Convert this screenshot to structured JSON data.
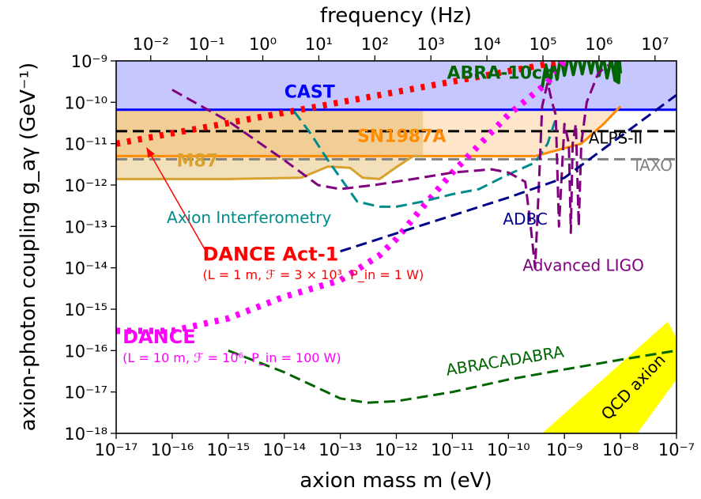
{
  "chart_data": {
    "type": "line",
    "xlabel": "axion mass m (eV)",
    "ylabel": "axion-photon coupling g_aγ (GeV⁻¹)",
    "top_axis_label": "frequency (Hz)",
    "xscale": "log",
    "yscale": "log",
    "xlim": [
      1e-17,
      1e-07
    ],
    "ylim": [
      1e-18,
      1e-09
    ],
    "x_ticks": [
      "10⁻¹⁷",
      "10⁻¹⁶",
      "10⁻¹⁵",
      "10⁻¹⁴",
      "10⁻¹³",
      "10⁻¹²",
      "10⁻¹¹",
      "10⁻¹⁰",
      "10⁻⁹",
      "10⁻⁸",
      "10⁻⁷"
    ],
    "y_ticks": [
      "10⁻¹⁸",
      "10⁻¹⁷",
      "10⁻¹⁶",
      "10⁻¹⁵",
      "10⁻¹⁴",
      "10⁻¹³",
      "10⁻¹²",
      "10⁻¹¹",
      "10⁻¹⁰",
      "10⁻⁹"
    ],
    "top_ticks": [
      "10⁻²",
      "10⁻¹",
      "10⁰",
      "10¹",
      "10²",
      "10³",
      "10⁴",
      "10⁵",
      "10⁶",
      "10⁷"
    ],
    "top_tick_values_hz": [
      0.01,
      0.1,
      1,
      10,
      100,
      1000,
      10000,
      100000,
      1000000,
      10000000
    ],
    "hz_per_ev": 241800000000000.0,
    "grid": false,
    "series": [
      {
        "name": "CAST",
        "color": "#0000ff",
        "style": "solid",
        "fill": "#0000ff",
        "fill_opacity": 0.22,
        "fill_to": 1e-09,
        "points": [
          [
            1e-17,
            6.6e-11
          ],
          [
            1e-07,
            6.6e-11
          ]
        ]
      },
      {
        "name": "ALPS-II",
        "color": "#000000",
        "style": "dashed",
        "points": [
          [
            1e-17,
            2e-11
          ],
          [
            1e-07,
            2e-11
          ]
        ]
      },
      {
        "name": "IAXO",
        "color": "#808080",
        "style": "dashed",
        "points": [
          [
            1e-17,
            4.2e-12
          ],
          [
            1e-07,
            4.2e-12
          ]
        ]
      },
      {
        "name": "SN1987A",
        "color": "#ff8c00",
        "style": "solid",
        "fill": "#ffc68a",
        "fill_opacity": 0.45,
        "fill_to": 6.6e-11,
        "points": [
          [
            1e-17,
            5e-12
          ],
          [
            3e-10,
            5e-12
          ],
          [
            2e-09,
            1e-11
          ],
          [
            5e-09,
            3e-11
          ],
          [
            1e-08,
            8e-11
          ]
        ]
      },
      {
        "name": "M87",
        "color": "#d8a130",
        "style": "solid",
        "fill": "#d8a130",
        "fill_opacity": 0.33,
        "fill_to": 6.6e-11,
        "fill_xmax": 1e-11,
        "points": [
          [
            1e-17,
            1.4e-12
          ],
          [
            1e-15,
            1.4e-12
          ],
          [
            2e-14,
            1.5e-12
          ],
          [
            6e-14,
            2.8e-12
          ],
          [
            1.5e-13,
            2.6e-12
          ],
          [
            2.5e-13,
            1.5e-12
          ],
          [
            5e-13,
            1.4e-12
          ],
          [
            1e-12,
            2.7e-12
          ],
          [
            2e-12,
            5e-12
          ],
          [
            3e-12,
            5e-12
          ]
        ]
      },
      {
        "name": "ABRA-10cm",
        "color": "#006400",
        "style": "wiggle",
        "points": [
          [
            4e-10,
            4e-10
          ],
          [
            1e-09,
            8e-10
          ],
          [
            3e-09,
            9e-10
          ],
          [
            8e-09,
            6e-10
          ],
          [
            1e-08,
            5e-10
          ]
        ]
      },
      {
        "name": "DANCE Act-1",
        "color": "#ff0000",
        "style": "dotted-thick",
        "points": [
          [
            1e-17,
            1e-11
          ],
          [
            1e-09,
            1e-09
          ]
        ]
      },
      {
        "name": "DANCE",
        "color": "#ff00ff",
        "style": "dotted-thick",
        "points": [
          [
            1e-17,
            3e-16
          ],
          [
            1e-16,
            3e-16
          ],
          [
            1e-15,
            6e-16
          ],
          [
            1e-14,
            2e-15
          ],
          [
            1e-13,
            5e-15
          ],
          [
            5e-13,
            2e-14
          ],
          [
            1e-12,
            5e-14
          ],
          [
            3e-12,
            3e-13
          ],
          [
            1e-11,
            2e-12
          ],
          [
            1e-10,
            5e-11
          ],
          [
            5e-10,
            3e-10
          ],
          [
            1e-09,
            1e-09
          ]
        ]
      },
      {
        "name": "Axion Interferometry",
        "color": "#008b8b",
        "style": "dashed",
        "points": [
          [
            1.5e-14,
            6e-11
          ],
          [
            3e-14,
            1.7e-11
          ],
          [
            6e-14,
            4e-12
          ],
          [
            1e-13,
            1.5e-12
          ],
          [
            2e-13,
            4e-13
          ],
          [
            5e-13,
            3e-13
          ],
          [
            1e-12,
            3e-13
          ],
          [
            3e-12,
            4e-13
          ],
          [
            1e-11,
            6e-13
          ],
          [
            3e-11,
            8e-13
          ],
          [
            1e-10,
            1.8e-12
          ],
          [
            3e-10,
            3.5e-12
          ],
          [
            5e-10,
            1e-11
          ],
          [
            7e-10,
            4e-11
          ]
        ]
      },
      {
        "name": "Advanced LIGO",
        "color": "#800080",
        "style": "dashed",
        "points": [
          [
            1e-16,
            2e-10
          ],
          [
            1e-15,
            3.5e-11
          ],
          [
            1e-14,
            4e-12
          ],
          [
            4e-14,
            1e-12
          ],
          [
            1e-13,
            8e-13
          ],
          [
            4e-13,
            1e-12
          ],
          [
            2e-12,
            1.4e-12
          ],
          [
            1e-11,
            2e-12
          ],
          [
            5e-11,
            2.4e-12
          ],
          [
            1e-10,
            2e-12
          ],
          [
            2e-10,
            1.2e-12
          ],
          [
            2.5e-10,
            1e-13
          ],
          [
            3e-10,
            1e-14
          ],
          [
            3.5e-10,
            1e-12
          ],
          [
            4e-10,
            8e-11
          ],
          [
            5e-10,
            3e-10
          ],
          [
            6e-10,
            1e-10
          ],
          [
            7e-10,
            5e-11
          ],
          [
            8e-10,
            1e-13
          ],
          [
            1e-09,
            3e-11
          ],
          [
            1.2e-09,
            1e-11
          ],
          [
            1.3e-09,
            7e-14
          ],
          [
            1.4e-09,
            1e-11
          ],
          [
            1.6e-09,
            3e-11
          ],
          [
            1.8e-09,
            1e-13
          ],
          [
            2e-09,
            1e-11
          ],
          [
            2.5e-09,
            1e-10
          ],
          [
            4e-09,
            5e-10
          ],
          [
            6e-09,
            8e-10
          ]
        ]
      },
      {
        "name": "ADBC",
        "color": "#00008b",
        "style": "dashed",
        "points": [
          [
            1e-13,
            2.5e-14
          ],
          [
            1e-10,
            5e-13
          ],
          [
            1e-09,
            1.5e-12
          ],
          [
            1e-08,
            1.5e-11
          ],
          [
            1e-07,
            1.5e-10
          ]
        ]
      },
      {
        "name": "ABRACADABRA",
        "color": "#006400",
        "style": "dashed",
        "points": [
          [
            1e-15,
            1e-16
          ],
          [
            1e-14,
            3e-17
          ],
          [
            1e-13,
            7e-18
          ],
          [
            3e-13,
            5.5e-18
          ],
          [
            1e-12,
            6e-18
          ],
          [
            1e-11,
            1e-17
          ],
          [
            1e-10,
            2e-17
          ],
          [
            1e-09,
            3.5e-17
          ],
          [
            1e-08,
            6e-17
          ],
          [
            1e-07,
            1e-16
          ]
        ]
      },
      {
        "name": "QCD axion",
        "color": "#ffff00",
        "style": "band",
        "polygon": [
          [
            4e-10,
            1e-18
          ],
          [
            7e-08,
            5e-16
          ],
          [
            1e-07,
            2e-16
          ],
          [
            1e-07,
            2e-17
          ],
          [
            2e-08,
            1e-18
          ]
        ]
      }
    ],
    "annotations": [
      {
        "text": "CAST",
        "at": [
          1e-14,
          1.3e-10
        ],
        "color": "#0000ff",
        "bold": true,
        "size": 22
      },
      {
        "text": "ABRA-10cm",
        "at": [
          8e-12,
          3.7e-10
        ],
        "color": "#006400",
        "bold": true,
        "size": 22
      },
      {
        "text": "SN1987A",
        "at": [
          2e-13,
          1.1e-11
        ],
        "color": "#ff8c00",
        "bold": true,
        "size": 22
      },
      {
        "text": "M87",
        "at": [
          1.2e-16,
          2.8e-12
        ],
        "color": "#d8a130",
        "bold": true,
        "size": 22
      },
      {
        "text": "ALPS-II",
        "at": [
          2.5e-08,
          1e-11
        ],
        "color": "#000000",
        "bold": false,
        "size": 20,
        "anchor": "end"
      },
      {
        "text": "IAXO",
        "at": [
          8.5e-08,
          2.2e-12
        ],
        "color": "#808080",
        "bold": false,
        "size": 20,
        "anchor": "end"
      },
      {
        "text": "Axion Interferometry",
        "at": [
          8e-17,
          1.2e-13
        ],
        "color": "#008b8b",
        "bold": false,
        "size": 20
      },
      {
        "text": "ADBC",
        "at": [
          8e-11,
          1.1e-13
        ],
        "color": "#00008b",
        "bold": false,
        "size": 20
      },
      {
        "text": "Advanced LIGO",
        "at": [
          1.8e-10,
          8.5e-15
        ],
        "color": "#800080",
        "bold": false,
        "size": 20
      },
      {
        "text": "DANCE Act-1",
        "at": [
          3.5e-16,
          1.5e-14
        ],
        "color": "#ff0000",
        "bold": true,
        "size": 24
      },
      {
        "text": "(L = 1 m, ℱ = 3 × 10³, P_in = 1 W)",
        "at": [
          3.5e-16,
          5.3e-15
        ],
        "color": "#ff0000",
        "bold": false,
        "size": 16
      },
      {
        "text": "DANCE",
        "at": [
          1.3e-17,
          1.5e-16
        ],
        "color": "#ff00ff",
        "bold": true,
        "size": 24
      },
      {
        "text": "(L = 10 m, ℱ = 10⁶, P_in = 100 W)",
        "at": [
          1.3e-17,
          5.3e-17
        ],
        "color": "#ff00ff",
        "bold": false,
        "size": 16
      },
      {
        "text": "ABRACADABRA",
        "at": [
          8e-12,
          2.5e-17
        ],
        "color": "#006400",
        "bold": false,
        "size": 20,
        "rotate": -9
      },
      {
        "text": "QCD axion",
        "at": [
          6e-09,
          2e-18
        ],
        "color": "#000000",
        "bold": false,
        "size": 20,
        "rotate": -46
      }
    ],
    "arrow": {
      "from": [
        4e-16,
        2.5e-14
      ],
      "to": [
        3.5e-17,
        8e-12
      ],
      "color": "#ff0000"
    }
  }
}
